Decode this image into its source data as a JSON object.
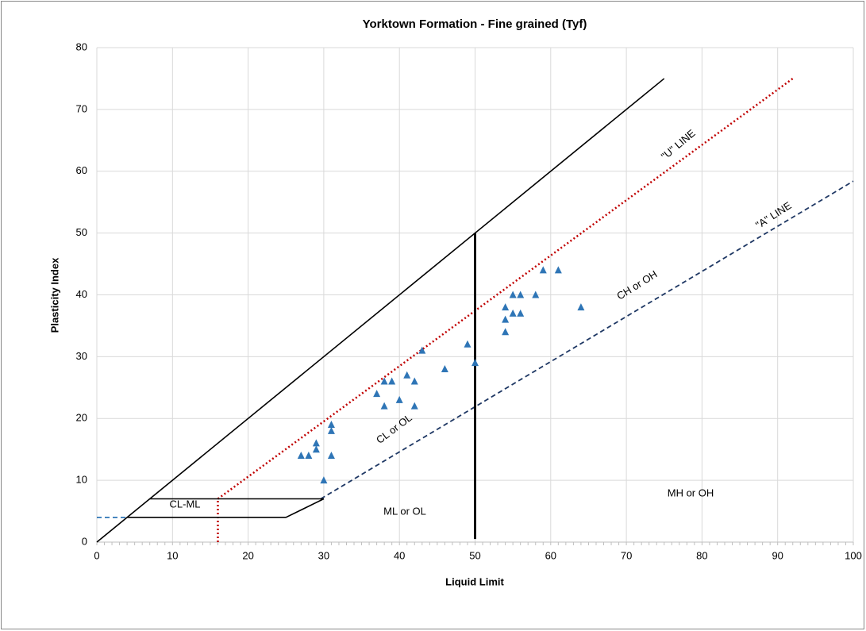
{
  "chart_data": {
    "type": "scatter",
    "title": "Yorktown Formation - Fine grained (Tyf)",
    "x_label": "Liquid Limit",
    "y_label": "Plasticity Index",
    "xlim": [
      0,
      100
    ],
    "ylim": [
      0,
      80
    ],
    "xticks": [
      0,
      10,
      20,
      30,
      40,
      50,
      60,
      70,
      80,
      90,
      100
    ],
    "yticks": [
      0,
      10,
      20,
      30,
      40,
      50,
      60,
      70,
      80
    ],
    "grid": true,
    "series": [
      {
        "color": "#2e75b6",
        "x": [
          27,
          28,
          29,
          29,
          30,
          31,
          31,
          31,
          37,
          38,
          38,
          39,
          40,
          41,
          42,
          42,
          43,
          46,
          49,
          50,
          54,
          54,
          54,
          55,
          55,
          56,
          56,
          58,
          59,
          61,
          64
        ],
        "values": [
          14,
          14,
          16,
          15,
          10,
          19,
          18,
          14,
          24,
          26,
          22,
          26,
          23,
          27,
          26,
          22,
          31,
          28,
          32,
          29,
          38,
          36,
          34,
          40,
          37,
          40,
          37,
          40,
          44,
          44,
          38
        ]
      }
    ],
    "lines": [
      {
        "x": [
          0,
          75
        ],
        "y": [
          0,
          75
        ],
        "color": "#000000",
        "style": "solid"
      },
      {
        "x": [
          16,
          92
        ],
        "y": [
          7,
          75
        ],
        "color": "#c00000",
        "style": "dotted"
      },
      {
        "x": [
          16,
          16
        ],
        "y": [
          0,
          7
        ],
        "color": "#c00000",
        "style": "dotted"
      },
      {
        "x": [
          29.6,
          100
        ],
        "y": [
          7,
          58.4
        ],
        "color": "#1f3864",
        "style": "dashed"
      },
      {
        "x": [
          0,
          4
        ],
        "y": [
          4,
          4
        ],
        "color": "#2e75b6",
        "style": "dashed"
      },
      {
        "x": [
          7,
          30,
          25,
          4
        ],
        "y": [
          7,
          7,
          4,
          4
        ],
        "color": "#000000",
        "style": "solid"
      },
      {
        "x": [
          50,
          50
        ],
        "y": [
          0.5,
          50
        ],
        "color": "#000000",
        "style": "bold"
      }
    ],
    "annotations": [
      "CL-ML",
      "ML or OL",
      "MH or OH",
      "CL or OL",
      "CH or OH",
      "\"U\" LINE",
      "\"A\" LINE"
    ]
  }
}
